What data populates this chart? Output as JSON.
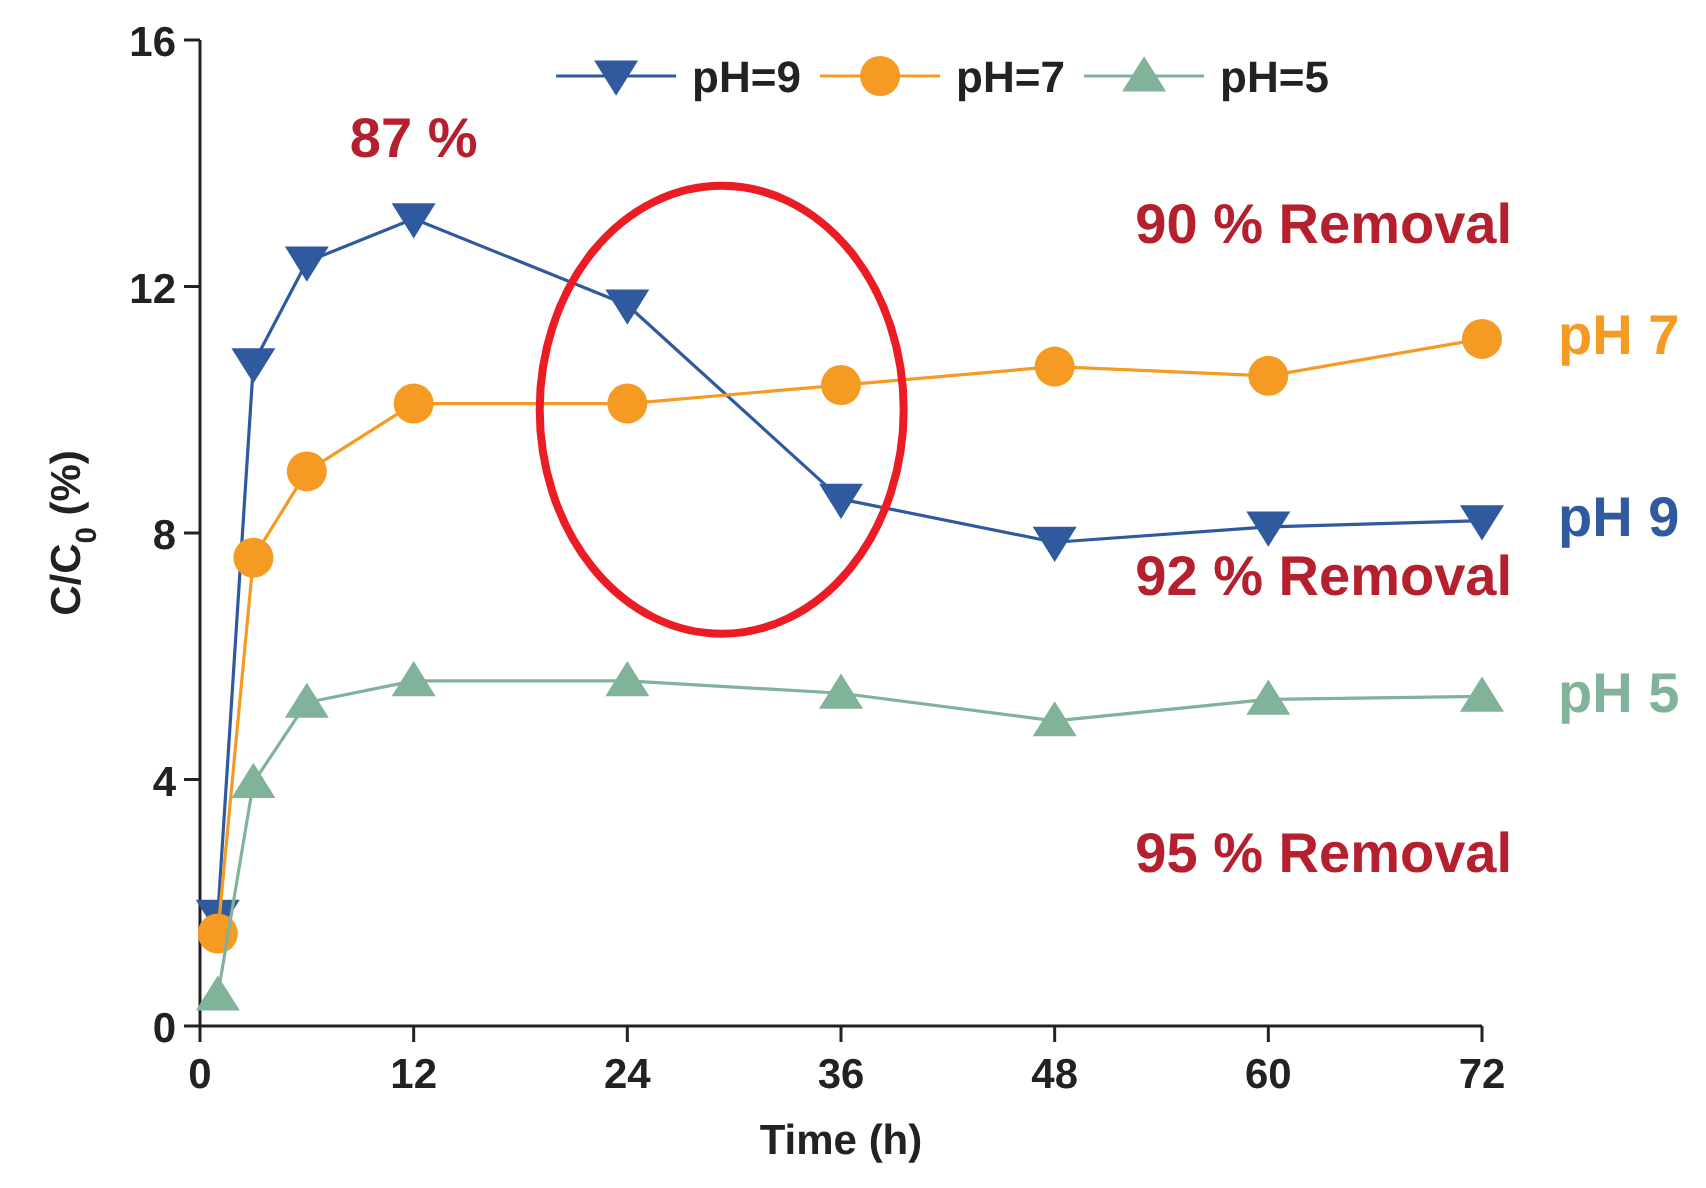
{
  "chart_data": {
    "type": "line",
    "xlabel": "Time (h)",
    "ylabel": "C/C$_{0}$ (%)",
    "x": [
      1,
      3,
      6,
      12,
      24,
      36,
      48,
      60,
      72
    ],
    "xlim": [
      0,
      72
    ],
    "xticks": [
      0,
      12,
      24,
      36,
      48,
      60,
      72
    ],
    "ylim": [
      0,
      16
    ],
    "yticks": [
      0,
      4,
      8,
      12,
      16
    ],
    "grid": false,
    "legend": "top",
    "line_style": "solid",
    "series": [
      {
        "name": "pH=9",
        "color": "#2f5a9e",
        "marker": "triangle-down",
        "values": [
          1.8,
          10.75,
          12.4,
          13.1,
          11.7,
          8.55,
          7.85,
          8.1,
          8.2
        ]
      },
      {
        "name": "pH=7",
        "color": "#f59a23",
        "marker": "circle",
        "values": [
          1.5,
          7.6,
          9.0,
          10.1,
          10.1,
          10.4,
          10.7,
          10.55,
          11.15
        ]
      },
      {
        "name": "pH=5",
        "color": "#80b39a",
        "marker": "triangle",
        "values": [
          0.5,
          3.95,
          5.25,
          5.6,
          5.6,
          5.4,
          4.95,
          5.3,
          5.35
        ]
      }
    ],
    "annotations": [
      "87 %",
      "90 % Removal",
      "92 % Removal",
      "95 % Removal",
      "pH 7",
      "pH 9",
      "pH 5"
    ]
  }
}
